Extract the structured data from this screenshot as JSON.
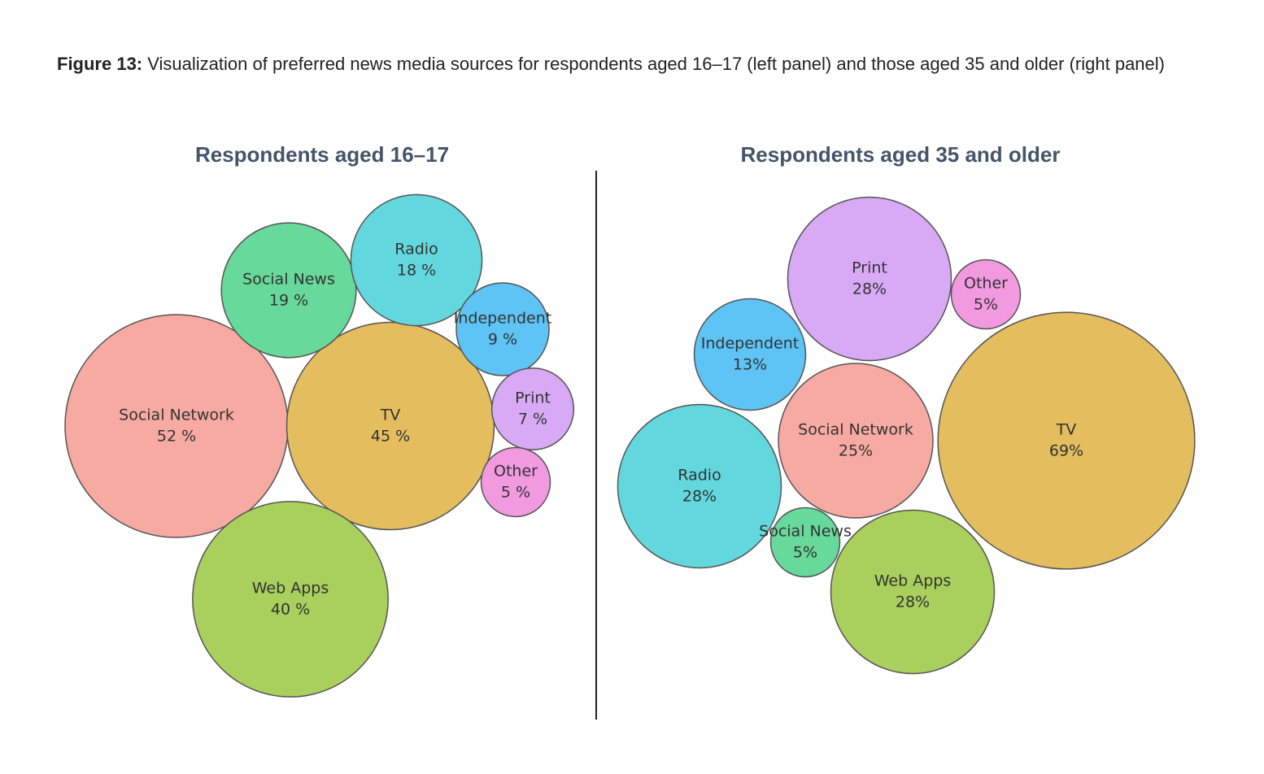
{
  "caption": {
    "label": "Figure 13:",
    "text": "Visualization of preferred news media sources for respondents aged 16–17 (left panel) and those aged 35 and older (right panel)"
  },
  "chart_data": [
    {
      "type": "bubble",
      "title": "Respondents aged 16–17",
      "categories": [
        "Social Network",
        "TV",
        "Web Apps",
        "Social News",
        "Radio",
        "Independent",
        "Print",
        "Other"
      ],
      "values": [
        52,
        45,
        40,
        19,
        18,
        9,
        7,
        5
      ],
      "value_labels": [
        "52 %",
        "45 %",
        "40 %",
        "19 %",
        "18 %",
        "9 %",
        "7 %",
        "5 %"
      ],
      "colors": [
        "#f7aaa2",
        "#e3bd5e",
        "#a9cf5c",
        "#67d99a",
        "#62d8de",
        "#5ec3f5",
        "#d8aaf5",
        "#f29ae0"
      ]
    },
    {
      "type": "bubble",
      "title": "Respondents aged 35 and older",
      "categories": [
        "TV",
        "Print",
        "Radio",
        "Web Apps",
        "Social Network",
        "Independent",
        "Other",
        "Social News"
      ],
      "values": [
        69,
        28,
        28,
        28,
        25,
        13,
        5,
        5
      ],
      "value_labels": [
        "69%",
        "28%",
        "28%",
        "28%",
        "25%",
        "13%",
        "5%",
        "5%"
      ],
      "colors": [
        "#e3bd5e",
        "#d8aaf5",
        "#62d8de",
        "#a9cf5c",
        "#f7aaa2",
        "#5ec3f5",
        "#f29ae0",
        "#67d99a"
      ]
    }
  ]
}
